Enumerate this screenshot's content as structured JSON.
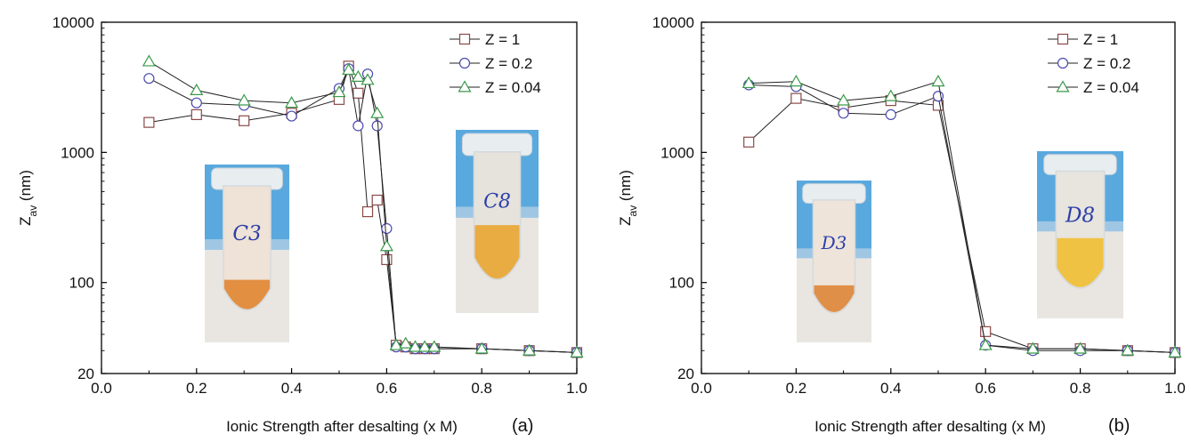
{
  "figure": {
    "panel_labels": [
      "(a)",
      "(b)"
    ]
  },
  "chart_data": [
    {
      "type": "scatter",
      "panel": "(a)",
      "title": "",
      "xlabel": "Ionic Strength after desalting (x M)",
      "ylabel_main": "Z",
      "ylabel_sub": "av",
      "ylabel_unit": " (nm)",
      "xlim": [
        0.0,
        1.0
      ],
      "ylim": [
        20,
        10000
      ],
      "yscale": "log",
      "grid": false,
      "legend_position": "top-right",
      "x_ticks": [
        0.0,
        0.2,
        0.4,
        0.6,
        0.8,
        1.0
      ],
      "x_tick_labels": [
        "0.0",
        "0.2",
        "0.4",
        "0.6",
        "0.8",
        "1.0"
      ],
      "y_ticks": [
        20,
        100,
        1000,
        10000
      ],
      "y_tick_labels": [
        "20",
        "100",
        "1000",
        "10000"
      ],
      "series": [
        {
          "name": "Z = 1",
          "marker": "square",
          "color": "#8B4A4A",
          "x": [
            0.1,
            0.2,
            0.3,
            0.4,
            0.5,
            0.52,
            0.54,
            0.56,
            0.58,
            0.6,
            0.62,
            0.64,
            0.66,
            0.68,
            0.7,
            0.8,
            0.9,
            1.0
          ],
          "y": [
            1700,
            1950,
            1750,
            2000,
            2550,
            4600,
            2850,
            350,
            430,
            150,
            33,
            32,
            31,
            31,
            31,
            31,
            30,
            29
          ]
        },
        {
          "name": "Z = 0.2",
          "marker": "circle",
          "color": "#4A4AB0",
          "x": [
            0.1,
            0.2,
            0.3,
            0.4,
            0.5,
            0.52,
            0.54,
            0.56,
            0.58,
            0.6,
            0.62,
            0.64,
            0.66,
            0.68,
            0.7,
            0.8,
            0.9,
            1.0
          ],
          "y": [
            3700,
            2400,
            2300,
            1900,
            3100,
            4400,
            1600,
            4000,
            1600,
            260,
            32,
            32,
            31,
            31,
            31,
            31,
            30,
            29
          ]
        },
        {
          "name": "Z = 0.04",
          "marker": "triangle",
          "color": "#3A9A4A",
          "x": [
            0.1,
            0.2,
            0.3,
            0.4,
            0.5,
            0.52,
            0.54,
            0.56,
            0.58,
            0.6,
            0.62,
            0.64,
            0.66,
            0.68,
            0.7,
            0.8,
            0.9,
            1.0
          ],
          "y": [
            5000,
            3000,
            2500,
            2400,
            2900,
            4300,
            3800,
            3600,
            2000,
            190,
            33,
            34,
            32,
            32,
            32,
            31,
            30,
            29
          ]
        }
      ],
      "insets": [
        {
          "tube_label": "C3",
          "liquid_color": "#E08A3A",
          "clear_color": "#EFE2D6"
        },
        {
          "tube_label": "C8",
          "liquid_color": "#E9A93A",
          "clear_color": "#E6E2DC"
        }
      ]
    },
    {
      "type": "scatter",
      "panel": "(b)",
      "title": "",
      "xlabel": "Ionic Strength after desalting (x M)",
      "ylabel_main": "Z",
      "ylabel_sub": "av",
      "ylabel_unit": " (nm)",
      "xlim": [
        0.0,
        1.0
      ],
      "ylim": [
        20,
        10000
      ],
      "yscale": "log",
      "grid": false,
      "legend_position": "top-right",
      "x_ticks": [
        0.0,
        0.2,
        0.4,
        0.6,
        0.8,
        1.0
      ],
      "x_tick_labels": [
        "0.0",
        "0.2",
        "0.4",
        "0.6",
        "0.8",
        "1.0"
      ],
      "y_ticks": [
        20,
        100,
        1000,
        10000
      ],
      "y_tick_labels": [
        "20",
        "100",
        "1000",
        "10000"
      ],
      "series": [
        {
          "name": "Z = 1",
          "marker": "square",
          "color": "#8B4A4A",
          "x": [
            0.1,
            0.2,
            0.3,
            0.4,
            0.5,
            0.6,
            0.7,
            0.8,
            0.9,
            1.0
          ],
          "y": [
            1200,
            2600,
            2200,
            2500,
            2300,
            42,
            31,
            31,
            30,
            29
          ]
        },
        {
          "name": "Z = 0.2",
          "marker": "circle",
          "color": "#4A4AB0",
          "x": [
            0.1,
            0.2,
            0.3,
            0.4,
            0.5,
            0.6,
            0.7,
            0.8,
            0.9,
            1.0
          ],
          "y": [
            3300,
            3200,
            2000,
            1950,
            2700,
            33,
            30,
            30,
            30,
            29
          ]
        },
        {
          "name": "Z = 0.04",
          "marker": "triangle",
          "color": "#3A9A4A",
          "x": [
            0.1,
            0.2,
            0.3,
            0.4,
            0.5,
            0.6,
            0.7,
            0.8,
            0.9,
            1.0
          ],
          "y": [
            3400,
            3500,
            2500,
            2700,
            3500,
            33,
            31,
            31,
            30,
            29
          ]
        }
      ],
      "insets": [
        {
          "tube_label": "D3",
          "liquid_color": "#DD8A40",
          "clear_color": "#EFE4DA"
        },
        {
          "tube_label": "D8",
          "liquid_color": "#F0C03A",
          "clear_color": "#E8E4DE"
        }
      ]
    }
  ]
}
